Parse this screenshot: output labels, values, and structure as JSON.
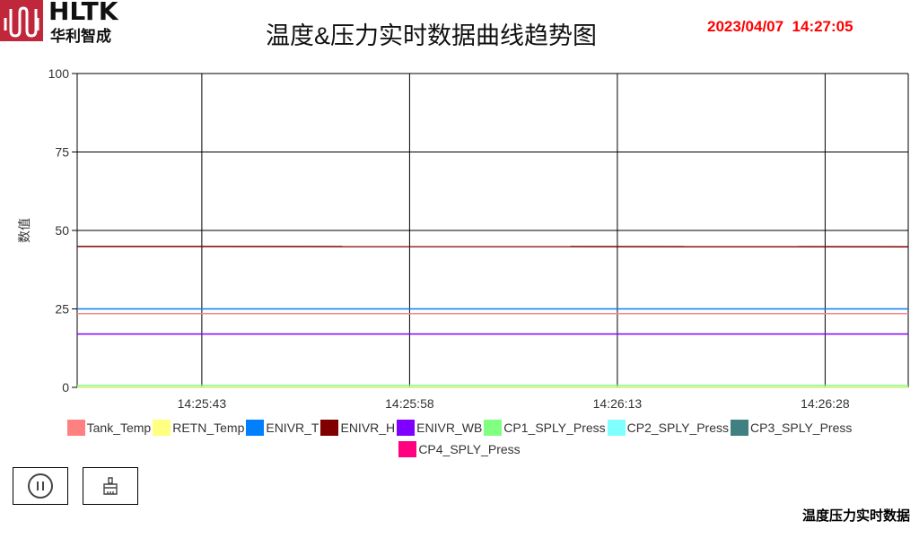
{
  "header": {
    "brand": "HLTK",
    "brand_cn": "华利智成",
    "title": "温度&压力实时数据曲线趋势图",
    "datetime": "2023/04/07  14:27:05"
  },
  "footer": {
    "label": "温度压力实时数据"
  },
  "buttons": {
    "pause_icon": "pause-circle-icon",
    "clear_icon": "brush-icon"
  },
  "chart_data": {
    "type": "line",
    "title": "",
    "xlabel": "",
    "ylabel": "数值",
    "ylim": [
      0,
      100
    ],
    "yticks": [
      0,
      25,
      50,
      75,
      100
    ],
    "xlim": [
      "14:25:34",
      "14:26:34"
    ],
    "xticks": [
      "14:25:43",
      "14:25:58",
      "14:26:13",
      "14:26:28"
    ],
    "grid": true,
    "legend_position": "bottom",
    "series": [
      {
        "name": "Tank_Temp",
        "color": "#ff8080",
        "values": [
          23.5,
          23.5
        ]
      },
      {
        "name": "RETN_Temp",
        "color": "#ffff80",
        "values": [
          0,
          0
        ]
      },
      {
        "name": "ENIVR_T",
        "color": "#0080ff",
        "values": [
          25,
          25
        ]
      },
      {
        "name": "ENIVR_H",
        "color": "#800000",
        "values": [
          44.9,
          44.8
        ]
      },
      {
        "name": "ENIVR_WB",
        "color": "#8000ff",
        "values": [
          17,
          17
        ]
      },
      {
        "name": "CP1_SPLY_Press",
        "color": "#80ff80",
        "values": [
          0.6,
          0.6
        ]
      },
      {
        "name": "CP2_SPLY_Press",
        "color": "#80ffff",
        "values": [
          0,
          0
        ]
      },
      {
        "name": "CP3_SPLY_Press",
        "color": "#408080",
        "values": [
          0,
          0
        ]
      },
      {
        "name": "CP4_SPLY_Press",
        "color": "#ff0080",
        "values": [
          0,
          0
        ]
      }
    ]
  }
}
